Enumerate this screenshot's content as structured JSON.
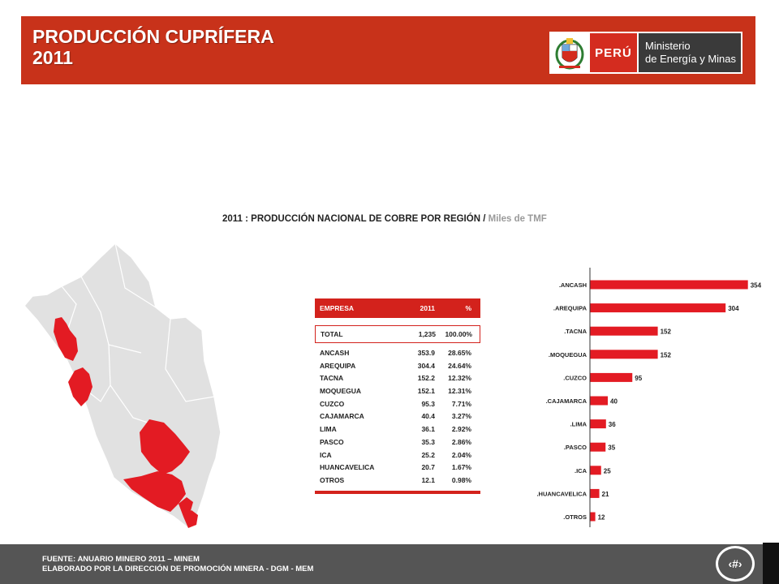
{
  "header": {
    "title_line1": "PRODUCCIÓN CUPRÍFERA",
    "title_line2": "2011",
    "logo_country": "PERÚ",
    "logo_ministry_line1": "Ministerio",
    "logo_ministry_line2": "de Energía y Minas"
  },
  "chart_title": {
    "main": "2011 : PRODUCCIÓN NACIONAL DE COBRE POR REGIÓN /",
    "unit": "Miles de TMF"
  },
  "table": {
    "headers": [
      "EMPRESA",
      "2011",
      "%"
    ],
    "total": {
      "label": "TOTAL",
      "value": "1,235",
      "pct": "100.00%"
    },
    "rows": [
      {
        "region": "ANCASH",
        "value": "353.9",
        "pct": "28.65%"
      },
      {
        "region": "AREQUIPA",
        "value": "304.4",
        "pct": "24.64%"
      },
      {
        "region": "TACNA",
        "value": "152.2",
        "pct": "12.32%"
      },
      {
        "region": "MOQUEGUA",
        "value": "152.1",
        "pct": "12.31%"
      },
      {
        "region": "CUZCO",
        "value": "95.3",
        "pct": "7.71%"
      },
      {
        "region": "CAJAMARCA",
        "value": "40.4",
        "pct": "3.27%"
      },
      {
        "region": "LIMA",
        "value": "36.1",
        "pct": "2.92%"
      },
      {
        "region": "PASCO",
        "value": "35.3",
        "pct": "2.86%"
      },
      {
        "region": "ICA",
        "value": "25.2",
        "pct": "2.04%"
      },
      {
        "region": "HUANCAVELICA",
        "value": "20.7",
        "pct": "1.67%"
      },
      {
        "region": "OTROS",
        "value": "12.1",
        "pct": "0.98%"
      }
    ]
  },
  "chart_data": {
    "type": "bar",
    "orientation": "horizontal",
    "categories": [
      ".ANCASH",
      ".AREQUIPA",
      ".TACNA",
      ".MOQUEGUA",
      ".CUZCO",
      ".CAJAMARCA",
      ".LIMA",
      ".PASCO",
      ".ICA",
      ".HUANCAVELICA",
      ".OTROS"
    ],
    "values": [
      354,
      304,
      152,
      152,
      95,
      40,
      36,
      35,
      25,
      21,
      12
    ],
    "value_labels": [
      "354",
      "304",
      "152",
      "152",
      "95",
      "40",
      "36",
      "35",
      "25",
      "21",
      "12"
    ],
    "xlim": [
      0,
      400
    ],
    "bar_color": "#e31b23",
    "grid": false
  },
  "footer": {
    "line1": "FUENTE: ANUARIO MINERO 2011 – MINEM",
    "line2": "ELABORADO POR LA DIRECCIÓN DE PROMOCIÓN MINERA  - DGM - MEM",
    "page_number": "‹#›"
  },
  "colors": {
    "header_bg": "#c8321a",
    "accent_red": "#d3221c",
    "footer_bg": "#555555",
    "map_base": "#e1e1e1",
    "map_highlight": "#e31b23"
  }
}
